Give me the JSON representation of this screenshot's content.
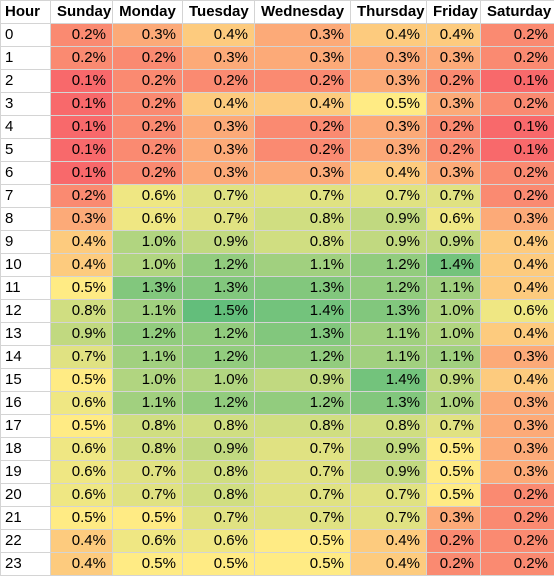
{
  "table": {
    "header": {
      "hour": "Hour",
      "days": [
        "Sunday",
        "Monday",
        "Tuesday",
        "Wednesday",
        "Thursday",
        "Friday",
        "Saturday"
      ]
    },
    "rows": [
      {
        "hour": "0",
        "values": [
          "0.2%",
          "0.3%",
          "0.4%",
          "0.3%",
          "0.4%",
          "0.4%",
          "0.2%"
        ]
      },
      {
        "hour": "1",
        "values": [
          "0.2%",
          "0.2%",
          "0.3%",
          "0.3%",
          "0.3%",
          "0.3%",
          "0.2%"
        ]
      },
      {
        "hour": "2",
        "values": [
          "0.1%",
          "0.2%",
          "0.2%",
          "0.2%",
          "0.3%",
          "0.2%",
          "0.1%"
        ]
      },
      {
        "hour": "3",
        "values": [
          "0.1%",
          "0.2%",
          "0.4%",
          "0.4%",
          "0.5%",
          "0.3%",
          "0.2%"
        ]
      },
      {
        "hour": "4",
        "values": [
          "0.1%",
          "0.2%",
          "0.3%",
          "0.2%",
          "0.3%",
          "0.2%",
          "0.1%"
        ]
      },
      {
        "hour": "5",
        "values": [
          "0.1%",
          "0.2%",
          "0.3%",
          "0.2%",
          "0.3%",
          "0.2%",
          "0.1%"
        ]
      },
      {
        "hour": "6",
        "values": [
          "0.1%",
          "0.2%",
          "0.3%",
          "0.3%",
          "0.4%",
          "0.3%",
          "0.2%"
        ]
      },
      {
        "hour": "7",
        "values": [
          "0.2%",
          "0.6%",
          "0.7%",
          "0.7%",
          "0.7%",
          "0.7%",
          "0.2%"
        ]
      },
      {
        "hour": "8",
        "values": [
          "0.3%",
          "0.6%",
          "0.7%",
          "0.8%",
          "0.9%",
          "0.6%",
          "0.3%"
        ]
      },
      {
        "hour": "9",
        "values": [
          "0.4%",
          "1.0%",
          "0.9%",
          "0.8%",
          "0.9%",
          "0.9%",
          "0.4%"
        ]
      },
      {
        "hour": "10",
        "values": [
          "0.4%",
          "1.0%",
          "1.2%",
          "1.1%",
          "1.2%",
          "1.4%",
          "0.4%"
        ]
      },
      {
        "hour": "11",
        "values": [
          "0.5%",
          "1.3%",
          "1.3%",
          "1.3%",
          "1.2%",
          "1.1%",
          "0.4%"
        ]
      },
      {
        "hour": "12",
        "values": [
          "0.8%",
          "1.1%",
          "1.5%",
          "1.4%",
          "1.3%",
          "1.0%",
          "0.6%"
        ]
      },
      {
        "hour": "13",
        "values": [
          "0.9%",
          "1.2%",
          "1.2%",
          "1.3%",
          "1.1%",
          "1.0%",
          "0.4%"
        ]
      },
      {
        "hour": "14",
        "values": [
          "0.7%",
          "1.1%",
          "1.2%",
          "1.2%",
          "1.1%",
          "1.1%",
          "0.3%"
        ]
      },
      {
        "hour": "15",
        "values": [
          "0.5%",
          "1.0%",
          "1.0%",
          "0.9%",
          "1.4%",
          "0.9%",
          "0.4%"
        ]
      },
      {
        "hour": "16",
        "values": [
          "0.6%",
          "1.1%",
          "1.2%",
          "1.2%",
          "1.3%",
          "1.0%",
          "0.3%"
        ]
      },
      {
        "hour": "17",
        "values": [
          "0.5%",
          "0.8%",
          "0.8%",
          "0.8%",
          "0.8%",
          "0.7%",
          "0.3%"
        ]
      },
      {
        "hour": "18",
        "values": [
          "0.6%",
          "0.8%",
          "0.9%",
          "0.7%",
          "0.9%",
          "0.5%",
          "0.3%"
        ]
      },
      {
        "hour": "19",
        "values": [
          "0.6%",
          "0.7%",
          "0.8%",
          "0.7%",
          "0.9%",
          "0.5%",
          "0.3%"
        ]
      },
      {
        "hour": "20",
        "values": [
          "0.6%",
          "0.7%",
          "0.8%",
          "0.7%",
          "0.7%",
          "0.5%",
          "0.2%"
        ]
      },
      {
        "hour": "21",
        "values": [
          "0.5%",
          "0.5%",
          "0.7%",
          "0.7%",
          "0.7%",
          "0.3%",
          "0.2%"
        ]
      },
      {
        "hour": "22",
        "values": [
          "0.4%",
          "0.6%",
          "0.6%",
          "0.5%",
          "0.4%",
          "0.2%",
          "0.2%"
        ]
      },
      {
        "hour": "23",
        "values": [
          "0.4%",
          "0.5%",
          "0.5%",
          "0.5%",
          "0.4%",
          "0.2%",
          "0.2%"
        ]
      }
    ]
  },
  "color_scale": {
    "low": "#f8696b",
    "mid": "#ffeb84",
    "high": "#63be7b"
  }
}
